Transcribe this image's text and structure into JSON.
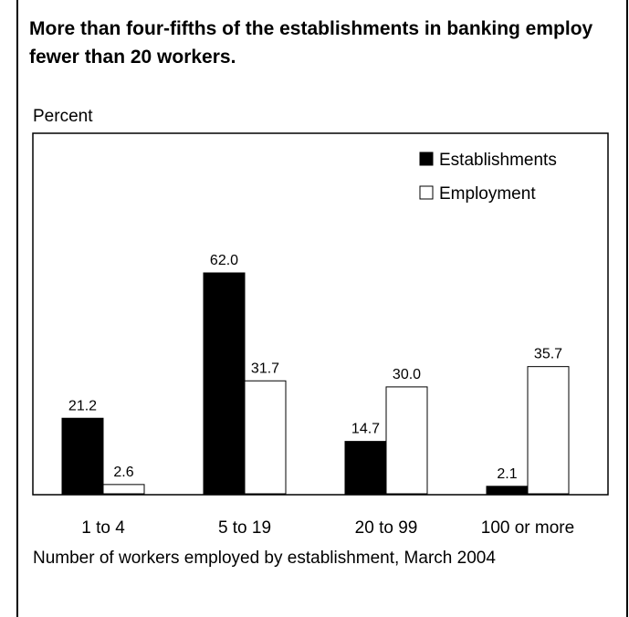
{
  "chart_data": {
    "type": "bar",
    "title": "More than four-fifths of the establishments in banking employ fewer than 20 workers.",
    "ylabel": "Percent",
    "xlabel": "Number of workers employed by establishment, March 2004",
    "categories": [
      "1 to 4",
      "5 to 19",
      "20 to 99",
      "100 or more"
    ],
    "series": [
      {
        "name": "Establishments",
        "values": [
          21.2,
          62.0,
          14.7,
          2.1
        ],
        "labels": [
          "21.2",
          "62.0",
          "14.7",
          "2.1"
        ],
        "color": "#000000"
      },
      {
        "name": "Employment",
        "values": [
          2.6,
          31.7,
          30.0,
          35.7
        ],
        "labels": [
          "2.6",
          "31.7",
          "30.0",
          "35.7"
        ],
        "color": "#ffffff"
      }
    ],
    "ylim": [
      0,
      62
    ],
    "grid": false,
    "legend_position": "top-right"
  }
}
